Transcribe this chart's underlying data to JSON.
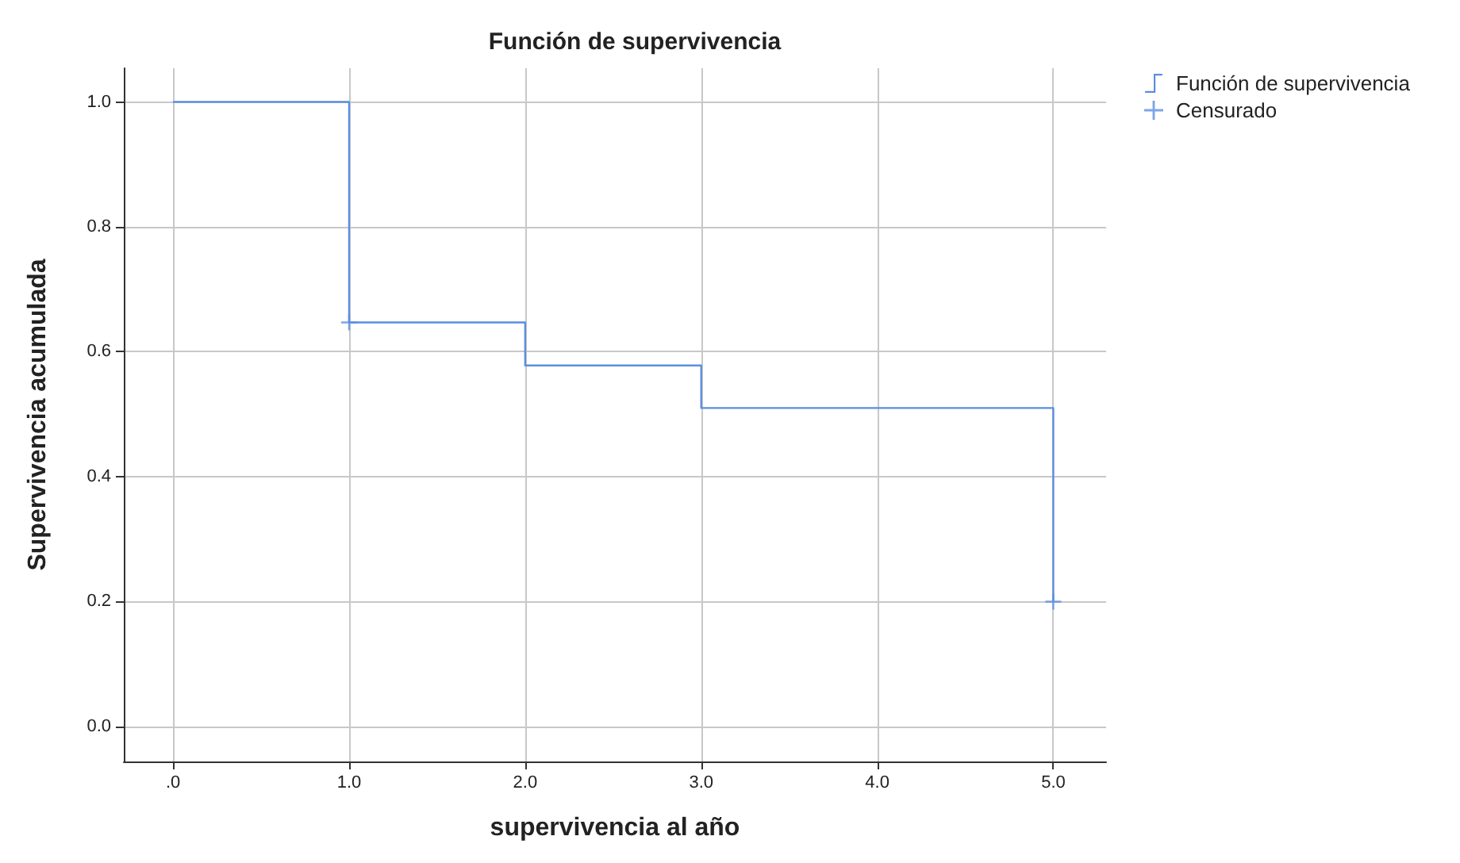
{
  "chart_data": {
    "type": "step",
    "title": "Función de supervivencia",
    "xlabel": "supervivencia al año",
    "ylabel": "Supervivencia acumulada",
    "x": [
      0,
      1,
      2,
      3,
      5
    ],
    "series": [
      {
        "name": "Función de supervivencia",
        "color": "#5b8ee0",
        "values": [
          1,
          0.647,
          0.578,
          0.51,
          0.2
        ],
        "marker": "none"
      },
      {
        "name": "Censurado",
        "type": "scatter",
        "color": "#5b8ee0",
        "x": [
          1,
          5
        ],
        "values": [
          0.647,
          0.2
        ],
        "marker": "cross"
      }
    ],
    "xlim": [
      -0.28,
      5.3
    ],
    "xticks": [
      {
        "value": 0,
        "label": ".0"
      },
      {
        "value": 1,
        "label": "1.0"
      },
      {
        "value": 2,
        "label": "2.0"
      },
      {
        "value": 3,
        "label": "3.0"
      },
      {
        "value": 4,
        "label": "4.0"
      },
      {
        "value": 5,
        "label": "5.0"
      }
    ],
    "ylim": [
      -0.056,
      1.054
    ],
    "yticks": [
      {
        "value": 0,
        "label": "0.0"
      },
      {
        "value": 0.2,
        "label": "0.2"
      },
      {
        "value": 0.4,
        "label": "0.4"
      },
      {
        "value": 0.6,
        "label": "0.6"
      },
      {
        "value": 0.8,
        "label": "0.8"
      },
      {
        "value": 1,
        "label": "1.0"
      }
    ],
    "grid": true,
    "legend": "top right"
  }
}
